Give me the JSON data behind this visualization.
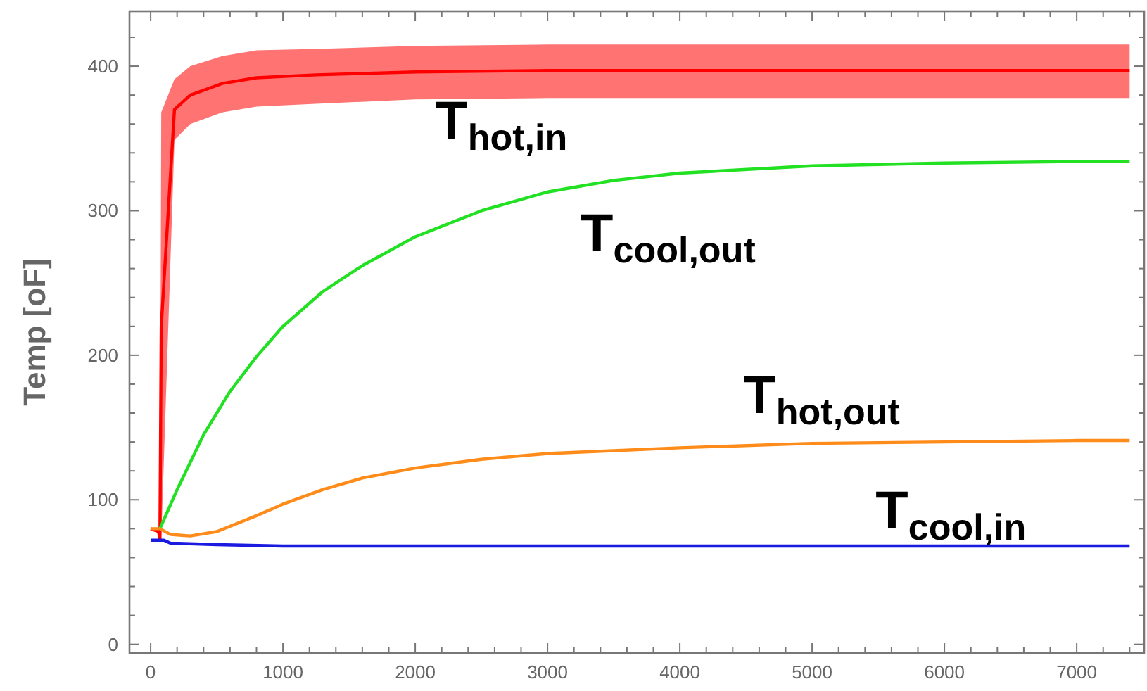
{
  "chart_data": {
    "type": "line",
    "ylabel": "Temp [oF]",
    "xlim": [
      -160,
      7510
    ],
    "ylim": [
      -6,
      438
    ],
    "xticks": [
      0,
      {
        "value": 200,
        "label": null
      },
      {
        "value": 400,
        "label": null
      },
      {
        "value": 600,
        "label": null
      },
      {
        "value": 800,
        "label": null
      },
      1000,
      {
        "value": 1200,
        "label": null
      },
      {
        "value": 1400,
        "label": null
      },
      {
        "value": 1600,
        "label": null
      },
      {
        "value": 1800,
        "label": null
      },
      2000,
      {
        "value": 2200,
        "label": null
      },
      {
        "value": 2400,
        "label": null
      },
      {
        "value": 2600,
        "label": null
      },
      {
        "value": 2800,
        "label": null
      },
      3000,
      {
        "value": 3200,
        "label": null
      },
      {
        "value": 3400,
        "label": null
      },
      {
        "value": 3600,
        "label": null
      },
      {
        "value": 3800,
        "label": null
      },
      4000,
      {
        "value": 4200,
        "label": null
      },
      {
        "value": 4400,
        "label": null
      },
      {
        "value": 4600,
        "label": null
      },
      {
        "value": 4800,
        "label": null
      },
      5000,
      {
        "value": 5200,
        "label": null
      },
      {
        "value": 5400,
        "label": null
      },
      {
        "value": 5600,
        "label": null
      },
      {
        "value": 5800,
        "label": null
      },
      6000,
      {
        "value": 6200,
        "label": null
      },
      {
        "value": 6400,
        "label": null
      },
      {
        "value": 6600,
        "label": null
      },
      {
        "value": 6800,
        "label": null
      },
      7000,
      {
        "value": 7200,
        "label": null
      },
      {
        "value": 7400,
        "label": null
      }
    ],
    "yticks": [
      0,
      {
        "value": 20,
        "label": null
      },
      {
        "value": 40,
        "label": null
      },
      {
        "value": 60,
        "label": null
      },
      {
        "value": 80,
        "label": null
      },
      100,
      {
        "value": 120,
        "label": null
      },
      {
        "value": 140,
        "label": null
      },
      {
        "value": 160,
        "label": null
      },
      {
        "value": 180,
        "label": null
      },
      200,
      {
        "value": 220,
        "label": null
      },
      {
        "value": 240,
        "label": null
      },
      {
        "value": 260,
        "label": null
      },
      {
        "value": 280,
        "label": null
      },
      300,
      {
        "value": 320,
        "label": null
      },
      {
        "value": 340,
        "label": null
      },
      {
        "value": 360,
        "label": null
      },
      {
        "value": 380,
        "label": null
      },
      400,
      {
        "value": 420,
        "label": null
      }
    ],
    "grid": false,
    "legend": false,
    "marker": "none",
    "line_style": "solid",
    "series": [
      {
        "name": "T$_{hot,in}$",
        "color": "#ff0000",
        "x": [
          0,
          60,
          70,
          80,
          180,
          300,
          540,
          800,
          1250,
          2000,
          3000,
          4000,
          5000,
          6000,
          7000,
          7400
        ],
        "values": [
          80,
          78,
          72,
          220,
          370,
          380,
          388,
          392,
          394,
          396,
          397,
          397,
          397,
          397,
          397,
          397
        ],
        "lower": [
          80,
          78,
          72,
          72,
          349,
          360,
          368,
          372,
          374,
          377,
          378,
          378,
          378,
          378,
          378,
          378
        ],
        "upper": [
          80,
          78,
          72,
          368,
          391,
          400,
          407,
          411,
          412,
          414,
          415,
          415,
          415,
          415,
          415,
          415
        ]
      },
      {
        "name": "T$_{cool,out}$",
        "color": "#22e022",
        "x": [
          70,
          200,
          400,
          600,
          800,
          1000,
          1300,
          1600,
          2000,
          2500,
          3000,
          3500,
          4000,
          5000,
          6000,
          7000,
          7400
        ],
        "values": [
          80,
          107,
          145,
          175,
          199,
          220,
          244,
          262,
          282,
          300,
          313,
          321,
          326,
          331,
          333,
          334,
          334
        ]
      },
      {
        "name": "T$_{hot,out}$",
        "color": "#ff8c1a",
        "x": [
          0,
          70,
          150,
          300,
          500,
          800,
          1000,
          1300,
          1600,
          2000,
          2500,
          3000,
          3500,
          4000,
          5000,
          6000,
          7000,
          7400
        ],
        "values": [
          80,
          80,
          76,
          75,
          78,
          89,
          97,
          107,
          115,
          122,
          128,
          132,
          134,
          136,
          139,
          140,
          141,
          141
        ]
      },
      {
        "name": "T$_{cool,in}$",
        "color": "#1a1ae0",
        "x": [
          0,
          100,
          150,
          500,
          1000,
          2000,
          3000,
          4000,
          5000,
          6000,
          7000,
          7400
        ],
        "values": [
          72,
          72,
          70,
          69,
          68,
          68,
          68,
          68,
          68,
          68,
          68,
          68
        ]
      }
    ]
  }
}
